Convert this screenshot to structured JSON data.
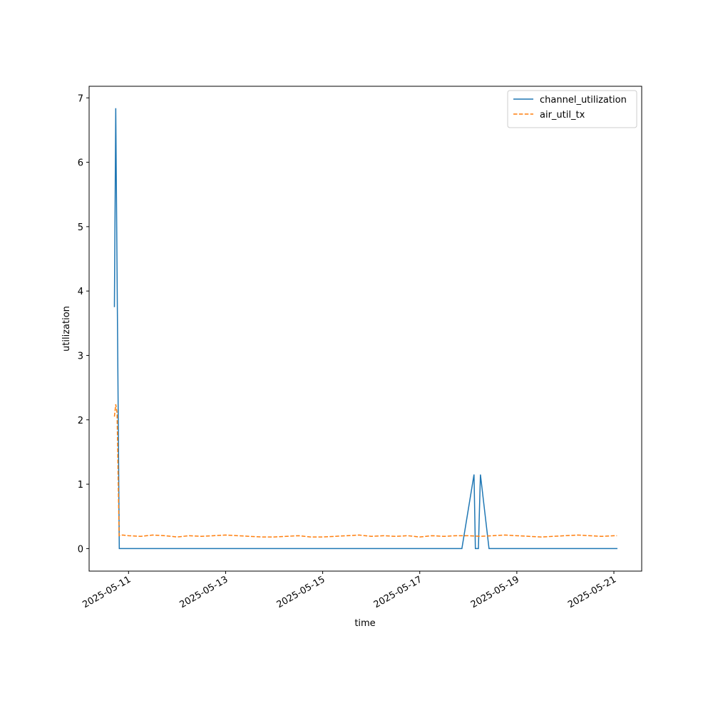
{
  "chart_data": {
    "type": "line",
    "x_label": "time",
    "y_label": "utilization",
    "xlim": [
      "2025-05-10 04:30",
      "2025-05-21 13:45"
    ],
    "xticks": [
      "2025-05-11",
      "2025-05-13",
      "2025-05-15",
      "2025-05-17",
      "2025-05-19",
      "2025-05-21"
    ],
    "ylim": [
      -0.35,
      7.18
    ],
    "yticks": [
      0,
      1,
      2,
      3,
      4,
      5,
      6,
      7
    ],
    "legend": "upper right",
    "series": [
      {
        "name": "channel_utilization",
        "color": "#1f77b4",
        "dash": "solid",
        "x": [
          "2025-05-10 17:00",
          "2025-05-10 17:40",
          "2025-05-10 19:25",
          "2025-05-17 20:50",
          "2025-05-18 02:50",
          "2025-05-18 03:30",
          "2025-05-18 05:00",
          "2025-05-18 06:00",
          "2025-05-18 10:15",
          "2025-05-21 01:45"
        ],
        "values": [
          3.75,
          6.84,
          0,
          0,
          1.15,
          0,
          0,
          1.15,
          0,
          0
        ]
      },
      {
        "name": "air_util_tx",
        "color": "#ff7f0e",
        "dash": "dashed",
        "x": [
          "2025-05-10 17:00",
          "2025-05-10 17:40",
          "2025-05-10 18:20",
          "2025-05-10 19:20",
          "2025-05-10 21:00",
          "2025-05-11 00:00",
          "2025-05-11 06:00",
          "2025-05-11 12:00",
          "2025-05-11 18:00",
          "2025-05-12 00:00",
          "2025-05-12 06:00",
          "2025-05-12 12:00",
          "2025-05-12 18:00",
          "2025-05-13 00:00",
          "2025-05-13 06:00",
          "2025-05-13 12:00",
          "2025-05-13 18:00",
          "2025-05-14 00:00",
          "2025-05-14 06:00",
          "2025-05-14 12:00",
          "2025-05-14 18:00",
          "2025-05-15 00:00",
          "2025-05-15 06:00",
          "2025-05-15 12:00",
          "2025-05-15 18:00",
          "2025-05-16 00:00",
          "2025-05-16 06:00",
          "2025-05-16 12:00",
          "2025-05-16 18:00",
          "2025-05-17 00:00",
          "2025-05-17 06:00",
          "2025-05-17 12:00",
          "2025-05-17 18:00",
          "2025-05-18 00:00",
          "2025-05-18 06:00",
          "2025-05-18 12:00",
          "2025-05-18 18:00",
          "2025-05-19 00:00",
          "2025-05-19 06:00",
          "2025-05-19 12:00",
          "2025-05-19 18:00",
          "2025-05-20 00:00",
          "2025-05-20 06:00",
          "2025-05-20 12:00",
          "2025-05-20 18:00",
          "2025-05-21 00:00",
          "2025-05-21 01:30"
        ],
        "values": [
          2.05,
          2.24,
          2.1,
          0.2,
          0.21,
          0.2,
          0.19,
          0.21,
          0.2,
          0.18,
          0.2,
          0.19,
          0.2,
          0.21,
          0.2,
          0.19,
          0.18,
          0.18,
          0.19,
          0.2,
          0.18,
          0.18,
          0.19,
          0.2,
          0.21,
          0.19,
          0.2,
          0.19,
          0.2,
          0.18,
          0.2,
          0.19,
          0.2,
          0.2,
          0.19,
          0.2,
          0.21,
          0.2,
          0.19,
          0.18,
          0.19,
          0.2,
          0.21,
          0.2,
          0.19,
          0.2,
          0.2
        ]
      }
    ]
  }
}
